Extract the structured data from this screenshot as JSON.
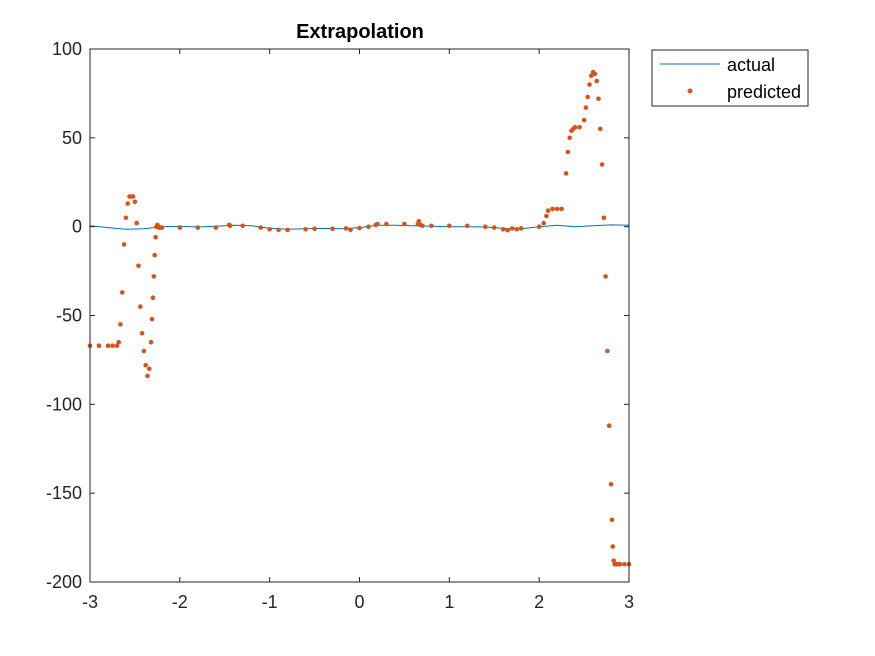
{
  "chart_data": {
    "type": "scatter",
    "title": "Extrapolation",
    "xlabel": "",
    "ylabel": "",
    "xlim": [
      -3,
      3
    ],
    "ylim": [
      -200,
      100
    ],
    "xticks": [
      -3,
      -2,
      -1,
      0,
      1,
      2,
      3
    ],
    "yticks": [
      -200,
      -150,
      -100,
      -50,
      0,
      50,
      100
    ],
    "xtick_labels": [
      "-3",
      "-2",
      "-1",
      "0",
      "1",
      "2",
      "3"
    ],
    "ytick_labels": [
      "-200",
      "-150",
      "-100",
      "-50",
      "0",
      "50",
      "100"
    ],
    "grid": false,
    "legend": {
      "placement": "outside-top-right",
      "entries": [
        "actual",
        "predicted"
      ]
    },
    "colors": {
      "actual": "#0072BD",
      "predicted": "#D95319"
    },
    "series": [
      {
        "name": "actual",
        "style": "line",
        "x": [
          -3.0,
          -2.8,
          -2.6,
          -2.4,
          -2.2,
          -2.0,
          -1.8,
          -1.6,
          -1.4,
          -1.2,
          -1.0,
          -0.8,
          -0.6,
          -0.4,
          -0.2,
          0.0,
          0.2,
          0.4,
          0.6,
          0.8,
          1.0,
          1.2,
          1.4,
          1.6,
          1.8,
          2.0,
          2.2,
          2.4,
          2.6,
          2.8,
          3.0
        ],
        "y": [
          0.5,
          -0.5,
          -1.5,
          -1.2,
          0.0,
          0.2,
          -0.2,
          0.2,
          0.8,
          0.5,
          -1.0,
          -1.5,
          -1.2,
          -1.0,
          -1.2,
          -0.5,
          0.8,
          0.8,
          0.5,
          0.2,
          0.0,
          0.0,
          -0.2,
          -1.0,
          -1.2,
          0.0,
          0.8,
          0.0,
          0.5,
          1.0,
          0.8
        ]
      },
      {
        "name": "predicted",
        "style": "markers",
        "x": [
          -3.0,
          -2.9,
          -2.8,
          -2.75,
          -2.7,
          -2.68,
          -2.66,
          -2.64,
          -2.62,
          -2.6,
          -2.58,
          -2.56,
          -2.54,
          -2.52,
          -2.5,
          -2.48,
          -2.46,
          -2.44,
          -2.42,
          -2.4,
          -2.38,
          -2.36,
          -2.34,
          -2.32,
          -2.31,
          -2.3,
          -2.29,
          -2.28,
          -2.27,
          -2.26,
          -2.25,
          -2.24,
          -2.23,
          -2.22,
          -2.2,
          -2.0,
          -1.8,
          -1.6,
          -1.45,
          -1.44,
          -1.3,
          -1.1,
          -1.0,
          -0.9,
          -0.8,
          -0.6,
          -0.5,
          -0.3,
          -0.15,
          -0.1,
          0.0,
          0.1,
          0.18,
          0.2,
          0.3,
          0.5,
          0.65,
          0.66,
          0.68,
          0.7,
          0.8,
          1.0,
          1.2,
          1.4,
          1.5,
          1.6,
          1.65,
          1.7,
          1.75,
          1.8,
          2.0,
          2.05,
          2.08,
          2.1,
          2.15,
          2.2,
          2.25,
          2.3,
          2.32,
          2.34,
          2.36,
          2.38,
          2.4,
          2.45,
          2.5,
          2.52,
          2.54,
          2.56,
          2.58,
          2.6,
          2.62,
          2.64,
          2.66,
          2.68,
          2.7,
          2.72,
          2.74,
          2.76,
          2.78,
          2.8,
          2.81,
          2.82,
          2.83,
          2.84,
          2.85,
          2.86,
          2.88,
          2.9,
          2.95,
          3.0
        ],
        "y": [
          -67,
          -67,
          -67,
          -67,
          -67,
          -65,
          -55,
          -37,
          -10,
          5,
          13,
          17,
          17,
          17,
          14,
          2,
          -22,
          -45,
          -60,
          -70,
          -78,
          -84,
          -80,
          -65,
          -52,
          -40,
          -28,
          -16,
          -6,
          0,
          1,
          0,
          -0.5,
          -0.5,
          -0.5,
          -0.5,
          -0.5,
          -0.5,
          1,
          0.5,
          0.5,
          -0.5,
          -1.5,
          -1.8,
          -1.8,
          -1.5,
          -1.2,
          -1.2,
          -1,
          -1.8,
          -0.8,
          0,
          1,
          1.5,
          1.5,
          1.5,
          1.5,
          3,
          1,
          0.5,
          0.5,
          0.5,
          0.5,
          0,
          -0.5,
          -1.5,
          -2,
          -1,
          -1.5,
          -1,
          0,
          2,
          6,
          9,
          10,
          10,
          10,
          30,
          42,
          50,
          54,
          55,
          56,
          56,
          60,
          67,
          73,
          80,
          85,
          87,
          86,
          82,
          72,
          55,
          35,
          5,
          -28,
          -70,
          -112,
          -145,
          -165,
          -180,
          -188,
          -190,
          -190,
          -190,
          -190,
          -190,
          -190,
          -190
        ]
      }
    ]
  }
}
